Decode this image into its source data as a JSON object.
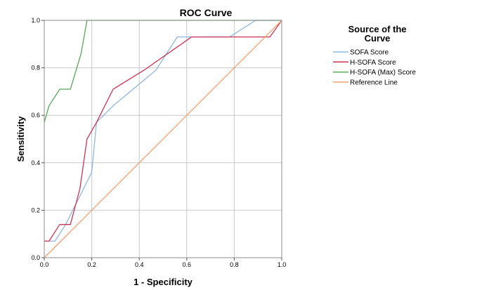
{
  "chart_data": {
    "type": "line",
    "title": "ROC Curve",
    "xlabel": "1 - Specificity",
    "ylabel": "Sensitivity",
    "xlim": [
      0,
      1
    ],
    "ylim": [
      0,
      1
    ],
    "grid": true,
    "x_ticks": [
      "0.0",
      "0.2",
      "0.4",
      "0.6",
      "0.8",
      "1.0"
    ],
    "y_ticks": [
      "0.0",
      "0.2",
      "0.4",
      "0.6",
      "0.8",
      "1.0"
    ],
    "legend": {
      "title_line1": "Source of the",
      "title_line2": "Curve",
      "placement": "right"
    },
    "series": [
      {
        "name": "SOFA Score",
        "color": "#8fb7df",
        "x": [
          0.0,
          0.045,
          0.09,
          0.2,
          0.22,
          0.29,
          0.47,
          0.56,
          0.62,
          0.78,
          0.89,
          1.0
        ],
        "y": [
          0.07,
          0.07,
          0.14,
          0.36,
          0.57,
          0.64,
          0.79,
          0.93,
          0.93,
          0.93,
          1.0,
          1.0
        ]
      },
      {
        "name": "H-SOFA Score",
        "color": "#cc3355",
        "x": [
          0.0,
          0.02,
          0.065,
          0.11,
          0.15,
          0.18,
          0.22,
          0.29,
          0.42,
          0.62,
          0.78,
          0.95,
          1.0
        ],
        "y": [
          0.07,
          0.07,
          0.14,
          0.14,
          0.29,
          0.5,
          0.57,
          0.71,
          0.79,
          0.93,
          0.93,
          0.93,
          1.0
        ]
      },
      {
        "name": "H-SOFA (Max) Score",
        "color": "#55a85a",
        "x": [
          0.0,
          0.02,
          0.065,
          0.11,
          0.155,
          0.18,
          1.0
        ],
        "y": [
          0.57,
          0.64,
          0.71,
          0.71,
          0.86,
          1.0,
          1.0
        ]
      },
      {
        "name": "Reference Line",
        "color": "#f0a070",
        "x": [
          0.0,
          1.0
        ],
        "y": [
          0.0,
          1.0
        ]
      }
    ]
  }
}
